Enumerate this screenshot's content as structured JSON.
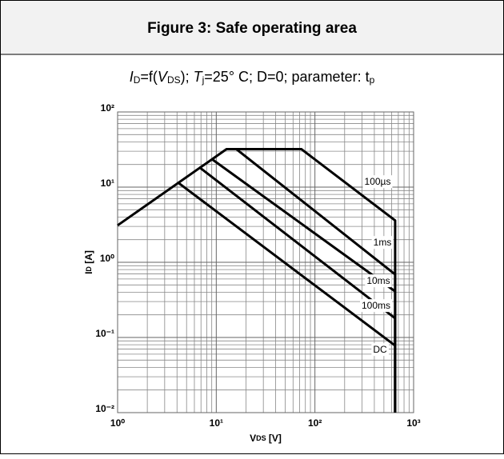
{
  "chart_data": {
    "type": "line",
    "title": "Figure 3: Safe operating area",
    "subtitle": [
      "I",
      "D",
      "=f(",
      "V",
      "DS",
      "); ",
      "T",
      "j",
      "=25° C; D=0; parameter: t",
      "p"
    ],
    "xlabel": [
      "V",
      "DS",
      " [V]"
    ],
    "ylabel": [
      "I",
      "D",
      " [A]"
    ],
    "xlog": true,
    "ylog": true,
    "grid": true,
    "minor_grid": true,
    "xlim": [
      1,
      1000
    ],
    "ylim": [
      0.01,
      100
    ],
    "xticks": [
      {
        "value": 1,
        "label": "10⁰"
      },
      {
        "value": 10,
        "label": "10¹"
      },
      {
        "value": 100,
        "label": "10²"
      },
      {
        "value": 1000,
        "label": "10³"
      }
    ],
    "yticks": [
      {
        "value": 0.01,
        "label": "10⁻²"
      },
      {
        "value": 0.1,
        "label": "10⁻¹"
      },
      {
        "value": 1,
        "label": "10⁰"
      },
      {
        "value": 10,
        "label": "10¹"
      },
      {
        "value": 100,
        "label": "10²"
      }
    ],
    "series": [
      {
        "name": "100µs",
        "color": "#000000",
        "x": [
          1,
          12.7,
          73,
          650,
          650
        ],
        "values": [
          3.1,
          32,
          32,
          3.6,
          0.01
        ]
      },
      {
        "name": "1ms",
        "color": "#000000",
        "x": [
          16,
          650,
          650
        ],
        "values": [
          32,
          0.69,
          0.01
        ]
      },
      {
        "name": "10ms",
        "color": "#000000",
        "x": [
          9.06,
          650,
          650
        ],
        "values": [
          23.5,
          0.41,
          0.01
        ]
      },
      {
        "name": "100ms",
        "color": "#000000",
        "x": [
          6.7,
          650,
          650
        ],
        "values": [
          18.5,
          0.18,
          0.01
        ]
      },
      {
        "name": "DC",
        "color": "#000000",
        "x": [
          4.06,
          650,
          650
        ],
        "values": [
          11.6,
          0.078,
          0.01
        ]
      }
    ]
  }
}
